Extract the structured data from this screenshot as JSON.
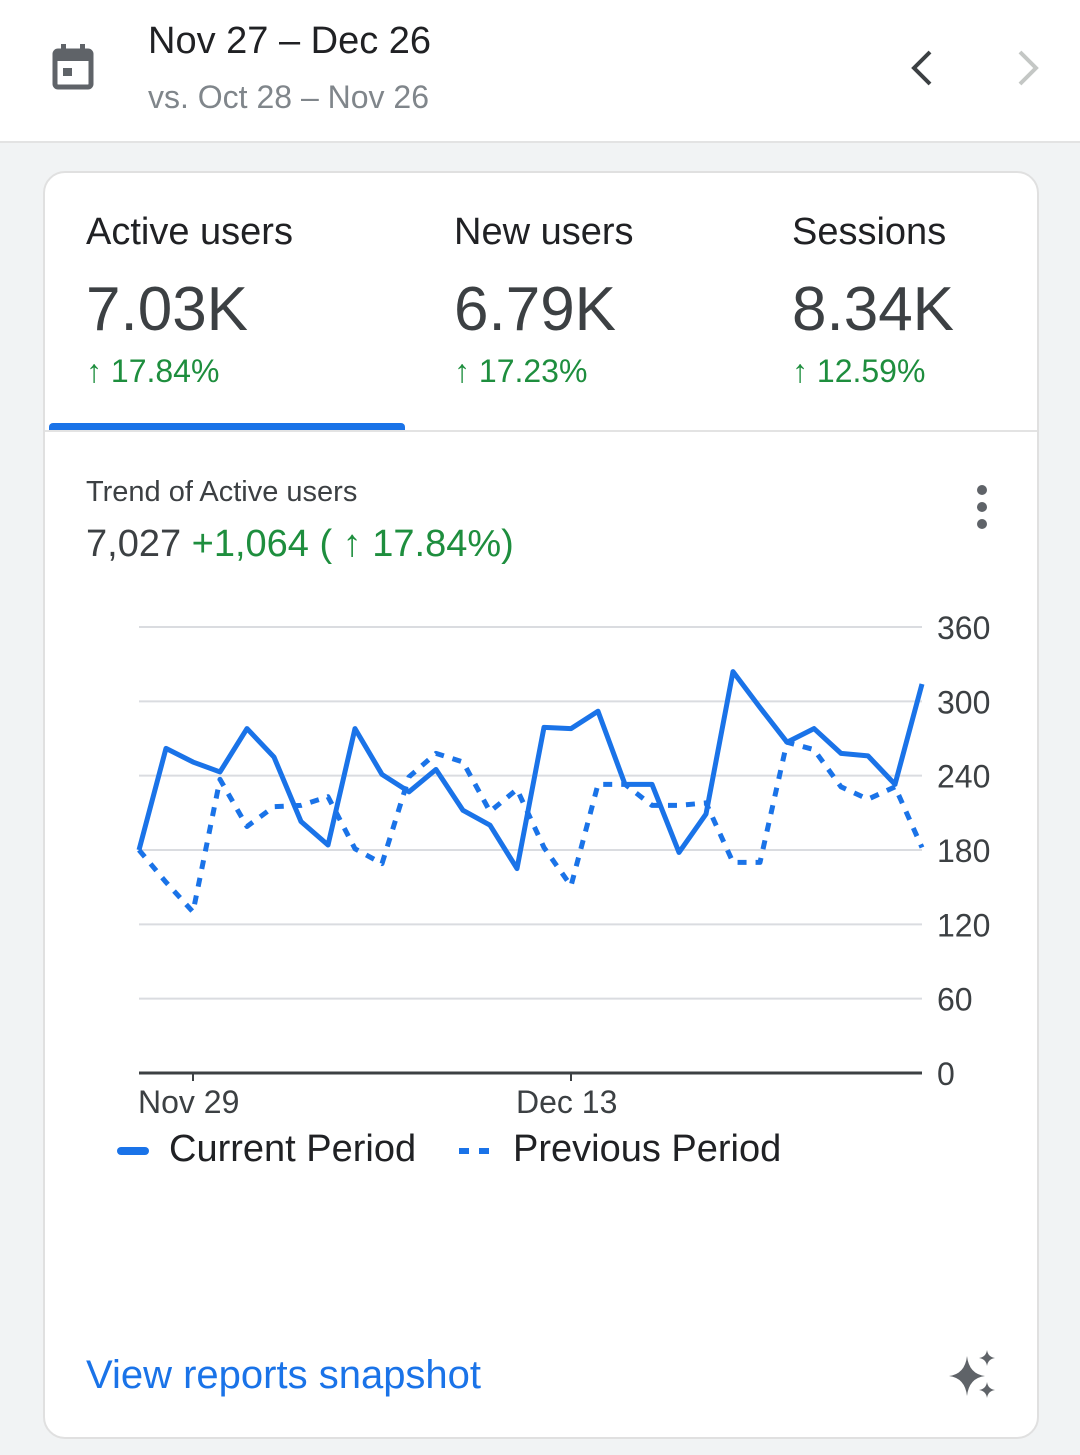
{
  "header": {
    "date_range": "Nov 27 – Dec 26",
    "compare_range": "vs. Oct 28 – Nov 26"
  },
  "metrics": [
    {
      "label": "Active users",
      "value": "7.03K",
      "delta": "↑ 17.84%"
    },
    {
      "label": "New users",
      "value": "6.79K",
      "delta": "↑ 17.23%"
    },
    {
      "label": "Sessions",
      "value": "8.34K",
      "delta": "↑ 12.59%"
    }
  ],
  "trend": {
    "title": "Trend of Active users",
    "total": "7,027",
    "change": "+1,064 ( ↑ 17.84%)"
  },
  "link": "View reports snapshot",
  "colors": {
    "accent": "#1a73e8",
    "positive": "#1e8e3e"
  },
  "chart_data": {
    "type": "line",
    "x_ticks": [
      "Nov 29",
      "Dec 13"
    ],
    "ylim": [
      0,
      360
    ],
    "y_ticks": [
      0,
      60,
      120,
      180,
      240,
      300,
      360
    ],
    "series": [
      {
        "name": "Current Period",
        "style": "solid",
        "values": [
          180,
          262,
          251,
          243,
          278,
          255,
          203,
          184,
          278,
          241,
          227,
          245,
          212,
          200,
          165,
          279,
          278,
          292,
          233,
          233,
          178,
          209,
          324,
          295,
          267,
          278,
          258,
          256,
          233,
          314
        ]
      },
      {
        "name": "Previous Period",
        "style": "dotted",
        "values": [
          180,
          154,
          130,
          237,
          199,
          215,
          216,
          223,
          181,
          169,
          239,
          258,
          251,
          211,
          229,
          182,
          151,
          233,
          233,
          216,
          216,
          218,
          170,
          170,
          267,
          261,
          231,
          221,
          231,
          182
        ]
      }
    ],
    "legend": "bottom-left"
  }
}
